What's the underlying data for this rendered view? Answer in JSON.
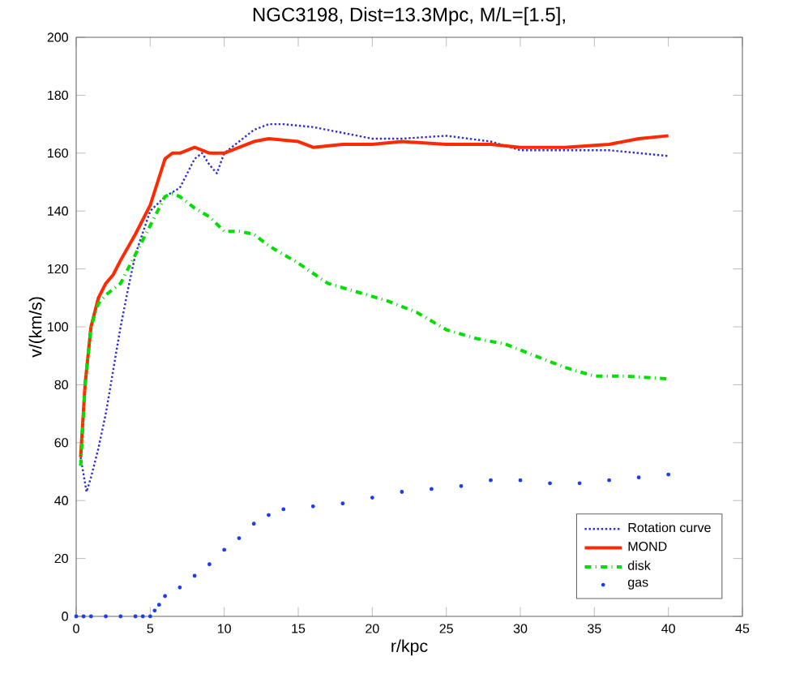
{
  "chart_data": {
    "type": "line",
    "title": "NGC3198, Dist=13.3Mpc, M/L=[1.5],",
    "xlabel": "r/kpc",
    "ylabel": "v/(km/s)",
    "xlim": [
      0,
      45
    ],
    "ylim": [
      0,
      200
    ],
    "xticks": [
      0,
      5,
      10,
      15,
      20,
      25,
      30,
      35,
      40,
      45
    ],
    "yticks": [
      0,
      20,
      40,
      60,
      80,
      100,
      120,
      140,
      160,
      180,
      200
    ],
    "grid": false,
    "legend": "bottom right",
    "series": [
      {
        "name": "Rotation curve",
        "line_style": "dotted",
        "color": "#3030d0",
        "x": [
          0.3,
          0.7,
          1,
          1.5,
          2,
          2.5,
          3,
          3.5,
          4,
          5,
          6,
          7,
          8,
          8.5,
          9,
          9.5,
          10,
          11,
          12,
          13,
          14,
          16,
          18,
          20,
          22,
          25,
          28,
          30,
          33,
          36,
          38,
          40
        ],
        "values": [
          55,
          43,
          48,
          58,
          70,
          85,
          100,
          113,
          125,
          140,
          145,
          148,
          158,
          160,
          156,
          153,
          160,
          164,
          168,
          170,
          170,
          169,
          167,
          165,
          165,
          166,
          164,
          161,
          161,
          161,
          160,
          159
        ]
      },
      {
        "name": "MOND",
        "line_style": "solid",
        "color": "#ff2a00",
        "x": [
          0.3,
          0.6,
          1,
          1.5,
          2,
          2.5,
          3,
          4,
          5,
          5.5,
          6,
          6.5,
          7,
          8,
          9,
          10,
          11,
          12,
          13,
          15,
          16,
          18,
          20,
          22,
          25,
          28,
          30,
          33,
          36,
          38,
          40
        ],
        "values": [
          55,
          80,
          100,
          110,
          115,
          118,
          123,
          132,
          142,
          150,
          158,
          160,
          160,
          162,
          160,
          160,
          162,
          164,
          165,
          164,
          162,
          163,
          163,
          164,
          163,
          163,
          162,
          162,
          163,
          165,
          166
        ]
      },
      {
        "name": "disk",
        "line_style": "dashdot",
        "color": "#00e000",
        "x": [
          0.3,
          0.6,
          1,
          1.5,
          2,
          3,
          4,
          5,
          6,
          6.5,
          7,
          8,
          9,
          10,
          11,
          12,
          13,
          15,
          17,
          19,
          21,
          23,
          25,
          27,
          29,
          31,
          33,
          35,
          37,
          40
        ],
        "values": [
          52,
          80,
          100,
          108,
          111,
          115,
          125,
          135,
          145,
          146,
          145,
          141,
          138,
          133,
          133,
          132,
          128,
          122,
          115,
          112,
          109,
          105,
          99,
          96,
          94,
          90,
          86,
          83,
          83,
          82
        ]
      },
      {
        "name": "gas",
        "type": "scatter",
        "marker": "circle",
        "color": "#1a3cf0",
        "x": [
          0,
          0.5,
          1,
          2,
          3,
          4,
          4.5,
          5,
          5.3,
          5.6,
          6,
          7,
          8,
          9,
          10,
          11,
          12,
          13,
          14,
          16,
          18,
          20,
          22,
          24,
          26,
          28,
          30,
          32,
          34,
          36,
          38,
          40
        ],
        "values": [
          0,
          0,
          0,
          0,
          0,
          0,
          0,
          0,
          2,
          4,
          7,
          10,
          14,
          18,
          23,
          27,
          32,
          35,
          37,
          38,
          39,
          41,
          43,
          44,
          45,
          47,
          47,
          46,
          46,
          47,
          48,
          49
        ]
      }
    ]
  }
}
